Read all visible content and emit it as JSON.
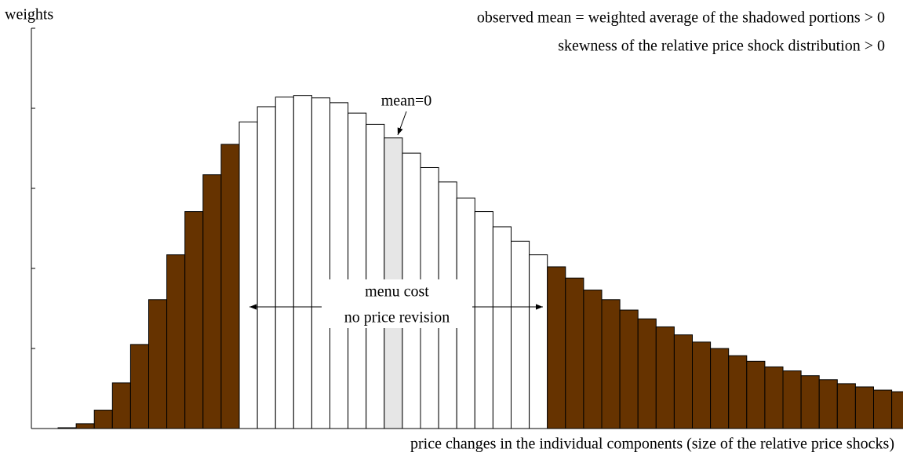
{
  "chart_data": {
    "type": "bar",
    "y_label": "weights",
    "x_label": "price changes in the individual components (size of the relative price shocks)",
    "annotations": [
      "observed mean = weighted average of the shadowed portions > 0",
      "skewness of the relative price shock distribution > 0",
      "mean=0",
      "menu cost",
      "no price revision"
    ],
    "values": [
      0.01,
      0.06,
      0.23,
      0.57,
      1.05,
      1.61,
      2.17,
      2.71,
      3.17,
      3.55,
      3.83,
      4.02,
      4.14,
      4.16,
      4.13,
      4.07,
      3.94,
      3.8,
      3.63,
      3.44,
      3.26,
      3.08,
      2.88,
      2.71,
      2.52,
      2.34,
      2.17,
      2.02,
      1.88,
      1.73,
      1.61,
      1.48,
      1.37,
      1.27,
      1.17,
      1.08,
      1.0,
      0.91,
      0.84,
      0.77,
      0.72,
      0.66,
      0.61,
      0.56,
      0.52,
      0.48,
      0.46
    ],
    "colors": [
      "#663300",
      "#663300",
      "#663300",
      "#663300",
      "#663300",
      "#663300",
      "#663300",
      "#663300",
      "#663300",
      "#663300",
      "#ffffff",
      "#ffffff",
      "#ffffff",
      "#ffffff",
      "#ffffff",
      "#ffffff",
      "#ffffff",
      "#ffffff",
      "#e6e6e6",
      "#ffffff",
      "#ffffff",
      "#ffffff",
      "#ffffff",
      "#ffffff",
      "#ffffff",
      "#ffffff",
      "#ffffff",
      "#663300",
      "#663300",
      "#663300",
      "#663300",
      "#663300",
      "#663300",
      "#663300",
      "#663300",
      "#663300",
      "#663300",
      "#663300",
      "#663300",
      "#663300",
      "#663300",
      "#663300",
      "#663300",
      "#663300",
      "#663300",
      "#663300",
      "#663300"
    ],
    "ylim": [
      0,
      5
    ],
    "yticks": [
      0,
      1,
      2,
      3,
      4,
      5
    ],
    "grid": false
  }
}
